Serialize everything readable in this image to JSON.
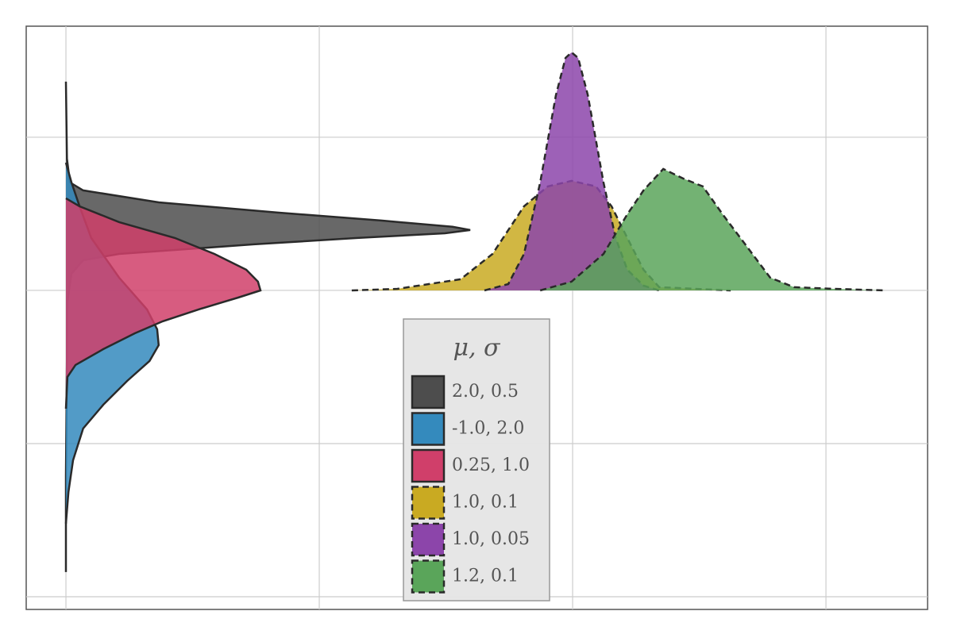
{
  "chart_data": {
    "type": "density",
    "legend_title": "μ,  σ",
    "xlim": [
      -0.0784,
      1.7006
    ],
    "ylim": [
      -2.083,
      1.725
    ],
    "xticks": [
      0,
      0.5,
      1,
      1.5
    ],
    "yticks": [
      -2,
      -1,
      0,
      1
    ],
    "grid": true,
    "series": [
      {
        "name": "2.0,  0.5",
        "color": "#4d4d4d",
        "linestyle": "solid",
        "orientation": "horizontal",
        "position": [
          1.363,
          0.86,
          0.705,
          0.653,
          0.575,
          0.508,
          0.456,
          0.415,
          0.394,
          0.373,
          0.342,
          0.301,
          0.264,
          0.238,
          0.197,
          0.109,
          -0.073,
          -0.435,
          -1.212,
          -1.839
        ],
        "density": [
          0,
          0.002,
          0.008,
          0.034,
          0.183,
          0.418,
          0.622,
          0.763,
          0.798,
          0.748,
          0.575,
          0.371,
          0.215,
          0.105,
          0.034,
          0.011,
          0.003,
          0.002,
          0,
          0
        ]
      },
      {
        "name": "-1.0,  2.0",
        "color": "#348abd",
        "linestyle": "solid",
        "orientation": "horizontal",
        "position": [
          0.834,
          0.705,
          0.549,
          0.342,
          0.083,
          -0.124,
          -0.254,
          -0.358,
          -0.461,
          -0.591,
          -0.746,
          -0.902,
          -1.109,
          -1.316,
          -1.523
        ],
        "density": [
          0,
          0.011,
          0.027,
          0.05,
          0.105,
          0.16,
          0.18,
          0.183,
          0.165,
          0.121,
          0.074,
          0.034,
          0.014,
          0.005,
          0
        ]
      },
      {
        "name": "0.25,  1.0",
        "color": "#d03f6a",
        "linestyle": "solid",
        "orientation": "horizontal",
        "position": [
          0.601,
          0.549,
          0.446,
          0.342,
          0.238,
          0.135,
          0.057,
          0,
          -0.047,
          -0.124,
          -0.202,
          -0.28,
          -0.383,
          -0.487,
          -0.565,
          -0.772
        ],
        "density": [
          0,
          0.027,
          0.105,
          0.215,
          0.293,
          0.356,
          0.379,
          0.384,
          0.34,
          0.262,
          0.191,
          0.136,
          0.074,
          0.019,
          0.003,
          0
        ]
      },
      {
        "name": "1.0,  0.1",
        "color": "#c9aa22",
        "linestyle": "dashed",
        "orientation": "vertical",
        "position": [
          0.564,
          0.654,
          0.779,
          0.842,
          0.904,
          0.951,
          0.998,
          1.046,
          1.077,
          1.108,
          1.14,
          1.171,
          1.312
        ],
        "density": [
          0,
          0.01,
          0.073,
          0.238,
          0.549,
          0.679,
          0.715,
          0.679,
          0.549,
          0.342,
          0.135,
          0.021,
          0
        ]
      },
      {
        "name": "1.0,  0.05",
        "color": "#8c45aa",
        "linestyle": "dashed",
        "orientation": "vertical",
        "position": [
          0.826,
          0.873,
          0.904,
          0.936,
          0.967,
          0.986,
          0.998,
          1.011,
          1.03,
          1.061,
          1.085,
          1.108,
          1.14,
          1.171
        ],
        "density": [
          0,
          0.041,
          0.238,
          0.705,
          1.275,
          1.518,
          1.554,
          1.518,
          1.275,
          0.705,
          0.342,
          0.135,
          0.031,
          0
        ]
      },
      {
        "name": "1.2,  0.1",
        "color": "#5aa55a",
        "linestyle": "dashed",
        "orientation": "vertical",
        "position": [
          0.936,
          0.998,
          1.061,
          1.108,
          1.14,
          1.179,
          1.218,
          1.257,
          1.296,
          1.343,
          1.39,
          1.437,
          1.516,
          1.618
        ],
        "density": [
          0,
          0.057,
          0.238,
          0.497,
          0.653,
          0.793,
          0.731,
          0.679,
          0.497,
          0.29,
          0.083,
          0.021,
          0.01,
          0
        ]
      }
    ]
  }
}
